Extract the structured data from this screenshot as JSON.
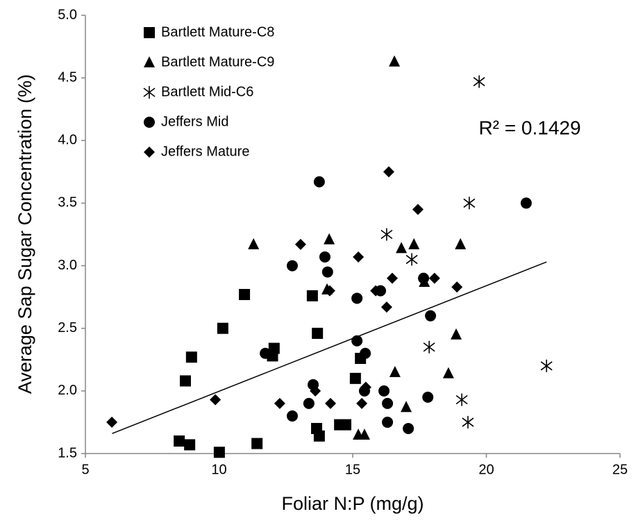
{
  "chart_data": {
    "type": "scatter",
    "xlabel": "Foliar N:P (mg/g)",
    "ylabel": "Average Sap Sugar Concentration (%)",
    "annotation": "R² = 0.1429",
    "xlim": [
      5,
      25
    ],
    "xticks": [
      5,
      10,
      15,
      20,
      25
    ],
    "ylim": [
      1.5,
      5
    ],
    "yticks": [
      1.5,
      {
        "value": 2,
        "label": "2.0"
      },
      2.5,
      {
        "value": 3,
        "label": "3.0"
      },
      3.5,
      {
        "value": 4,
        "label": "4.0"
      },
      4.5,
      {
        "value": 5,
        "label": "5.0"
      }
    ],
    "grid": false,
    "legend": "upper left",
    "trendline": {
      "color": "#000000",
      "x": [
        6,
        22.25
      ],
      "y": [
        1.66,
        3.03
      ]
    },
    "series": [
      {
        "name": "Bartlett Mature-C8",
        "marker": "square",
        "color": "#000000",
        "x": [
          10.95,
          10.14,
          8.97,
          8.74,
          8.51,
          8.9,
          10.01,
          11.42,
          12.0,
          12.06,
          13.49,
          13.68,
          13.65,
          13.75,
          14.51,
          14.74,
          15.1,
          15.29
        ],
        "y": [
          2.77,
          2.5,
          2.27,
          2.08,
          1.6,
          1.57,
          1.51,
          1.58,
          2.28,
          2.34,
          2.76,
          2.46,
          1.7,
          1.64,
          1.73,
          1.73,
          2.1,
          2.26
        ]
      },
      {
        "name": "Bartlett Mature-C9",
        "marker": "triangle",
        "color": "#000000",
        "x": [
          16.56,
          11.29,
          14.12,
          14.04,
          16.82,
          17.29,
          19.03,
          17.68,
          18.87,
          16.58,
          18.58,
          17.0,
          15.21,
          15.44
        ],
        "y": [
          4.63,
          3.17,
          3.21,
          2.81,
          3.14,
          3.17,
          3.17,
          2.87,
          2.45,
          2.15,
          2.14,
          1.87,
          1.65,
          1.65
        ]
      },
      {
        "name": "Bartlett Mid-C6",
        "marker": "asterisk",
        "color": "#000000",
        "x": [
          19.73,
          19.36,
          16.27,
          17.21,
          17.86,
          22.25,
          19.08,
          19.31
        ],
        "y": [
          4.47,
          3.5,
          3.25,
          3.05,
          2.35,
          2.2,
          1.93,
          1.75
        ]
      },
      {
        "name": "Jeffers Mid",
        "marker": "circle",
        "color": "#000000",
        "x": [
          13.75,
          21.49,
          12.74,
          13.96,
          14.06,
          15.16,
          16.04,
          17.65,
          17.91,
          11.73,
          15.16,
          15.47,
          13.52,
          13.36,
          12.74,
          15.44,
          16.3,
          16.3,
          17.08,
          17.81,
          16.17
        ],
        "y": [
          3.67,
          3.5,
          3.0,
          3.07,
          2.95,
          2.74,
          2.8,
          2.9,
          2.6,
          2.3,
          2.4,
          2.3,
          2.05,
          1.9,
          1.8,
          2.0,
          1.9,
          1.75,
          1.7,
          1.95,
          2.0
        ]
      },
      {
        "name": "Jeffers Mature",
        "marker": "diamond",
        "color": "#000000",
        "x": [
          5.99,
          9.86,
          12.27,
          13.05,
          13.6,
          14.17,
          14.14,
          15.21,
          15.34,
          15.49,
          15.86,
          16.35,
          16.27,
          16.48,
          17.44,
          18.06,
          18.9
        ],
        "y": [
          1.75,
          1.93,
          1.9,
          3.17,
          2.0,
          1.9,
          2.8,
          3.07,
          1.9,
          2.03,
          2.8,
          3.75,
          2.67,
          2.9,
          3.45,
          2.9,
          2.83
        ]
      }
    ]
  }
}
